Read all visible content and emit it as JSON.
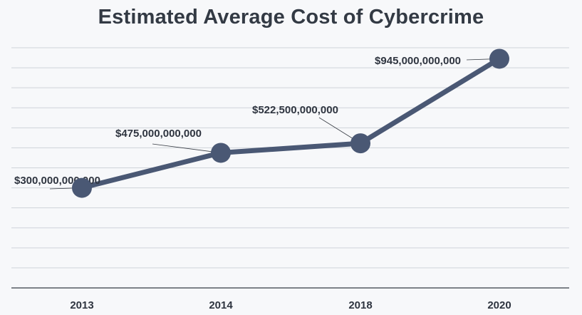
{
  "chart_data": {
    "type": "line",
    "title": "Estimated Average Cost of Cybercrime",
    "xlabel": "",
    "ylabel": "",
    "categories": [
      "2013",
      "2014",
      "2018",
      "2020"
    ],
    "series": [
      {
        "name": "Estimated Average Cost of Cybercrime",
        "values": [
          300000000000,
          475000000000,
          522500000000,
          945000000000
        ],
        "labels": [
          "$300,000,000,000",
          "$475,000,000,000",
          "$522,500,000,000",
          "$945,000,000,000"
        ]
      }
    ],
    "ylim": [
      -200000000000,
      1000000000000
    ],
    "grid": true,
    "legend": "none",
    "colors": {
      "line": "#4a5874",
      "grid": "#cfd3d9",
      "background": "#f7f8fa"
    }
  }
}
